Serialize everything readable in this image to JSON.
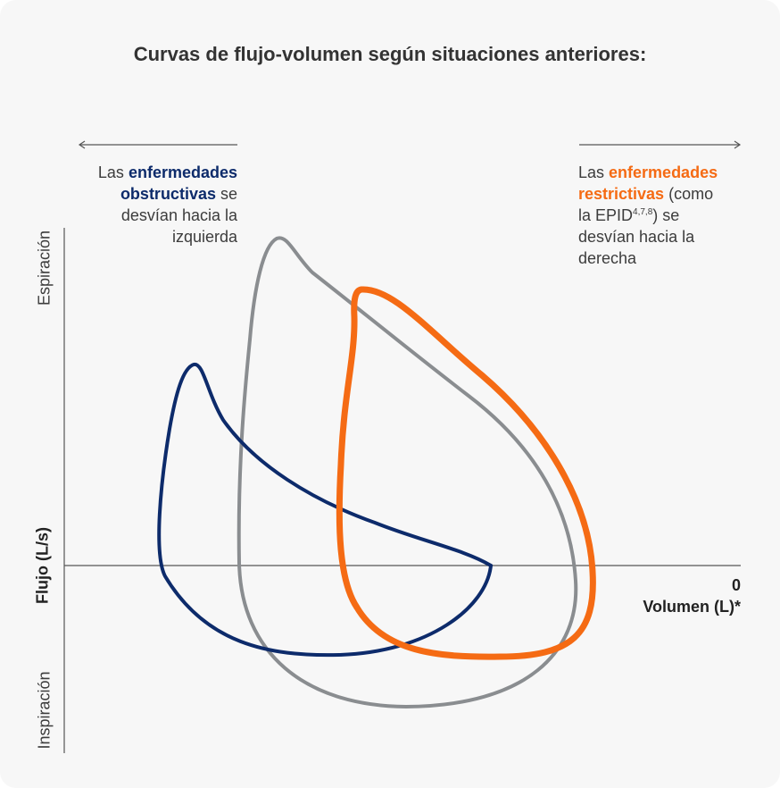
{
  "title": "Curvas de flujo-volumen según situaciones anteriores:",
  "left_note": {
    "prefix": "Las ",
    "highlight_1": "enfermedades",
    "highlight_2": "obstructivas",
    "middle": " se",
    "line_3": "desvían hacia la",
    "line_4": "izquierda"
  },
  "right_note": {
    "prefix": "Las ",
    "highlight_1": "enfermedades",
    "highlight_2": "restrictivas",
    "middle": " (como",
    "line_3a": "la EPID",
    "superscript": "4,7,8",
    "line_3b": ") se",
    "line_4": "desvían hacia la",
    "line_5": "derecha"
  },
  "axes": {
    "y_label": "Flujo (L/s)",
    "y_top_label": "Espiración",
    "y_bottom_label": "Inspiración",
    "x_zero": "0",
    "x_label": "Volumen (L)*"
  },
  "colors": {
    "obstructive": "#0d2b6b",
    "normal": "#8a8d90",
    "restrictive": "#f56b14",
    "axis": "#555555"
  }
}
